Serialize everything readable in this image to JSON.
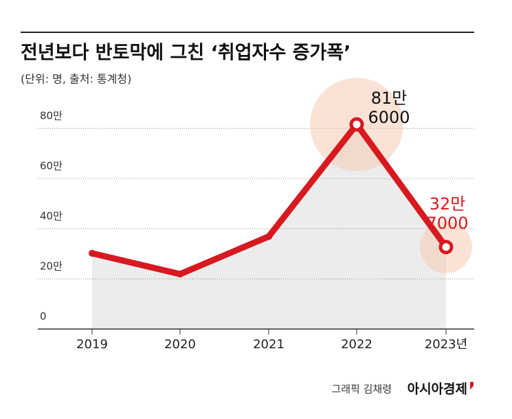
{
  "chart_data": {
    "type": "line",
    "title": "전년보다 반토막에 그친 ‘취업자수 증가폭’",
    "subtitle": "(단위: 명, 출처: 통계청)",
    "categories": [
      "2019",
      "2020",
      "2021",
      "2022",
      "2023년"
    ],
    "values": [
      30.2,
      21.9,
      36.9,
      81.6,
      32.7
    ],
    "value_labels": [
      null,
      null,
      null,
      [
        "81만",
        "6000"
      ],
      [
        "32만",
        "7000"
      ]
    ],
    "color": "#d71a20",
    "ylim": [
      0,
      80
    ],
    "yticks": [
      0,
      {
        "value": 20,
        "label": "20만"
      },
      {
        "value": 40,
        "label": "40만"
      },
      {
        "value": 60,
        "label": "60만"
      },
      {
        "value": 80,
        "label": "80만"
      }
    ],
    "grid": true,
    "credit": "그래픽 김채령",
    "source": "아시아경제"
  }
}
